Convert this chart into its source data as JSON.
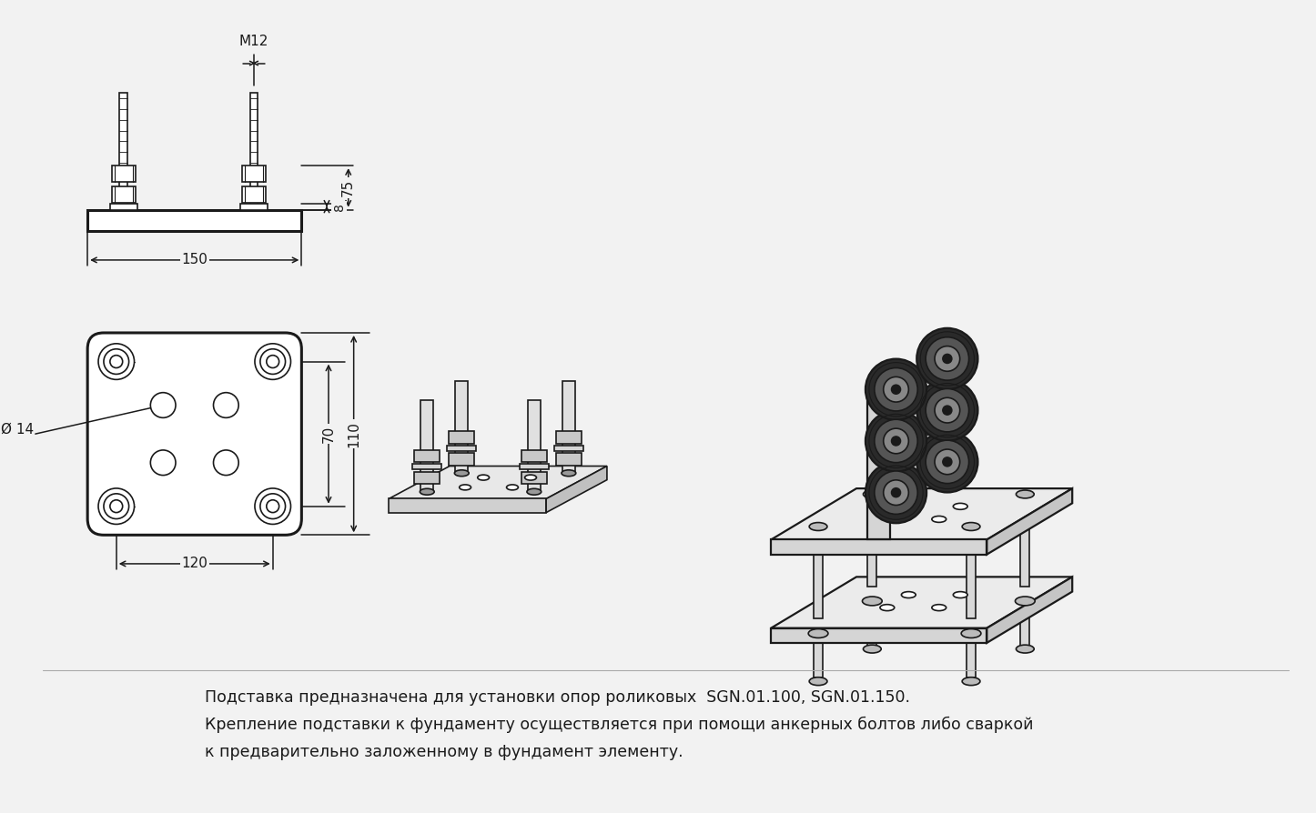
{
  "bg_color": "#f2f2f2",
  "line_color": "#1a1a1a",
  "description_line1": "Подставка предназначена для установки опор роликовых  SGN.01.100, SGN.01.150.",
  "description_line2": "Крепление подставки к фундаменту осуществляется при помощи анкерных болтов либо сваркой",
  "description_line3": "к предварительно заложенному в фундамент элементу.",
  "dim_M12": "М12",
  "dim_150": "150",
  "dim_75": "75",
  "dim_8": "8",
  "dim_120": "120",
  "dim_110": "110",
  "dim_70": "70",
  "dim_phi14": "Ø 14"
}
